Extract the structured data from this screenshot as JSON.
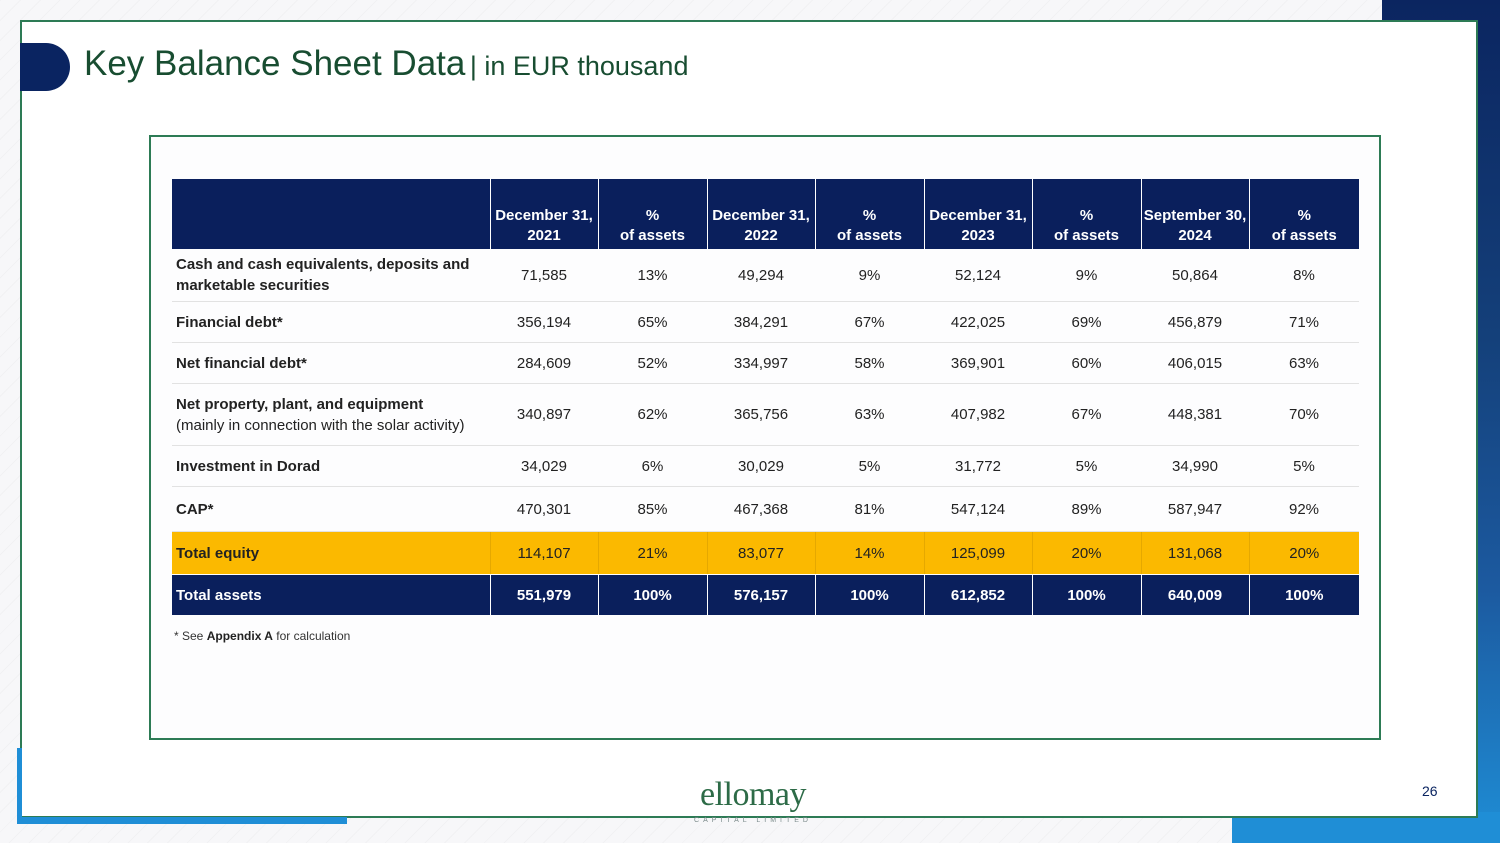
{
  "header": {
    "title": "Key Balance Sheet Data",
    "subtitle": "| in EUR thousand"
  },
  "table": {
    "columns": [
      "",
      "December 31,\n2021",
      "%\nof assets",
      "December 31,\n2022",
      "%\nof assets",
      "December 31,\n2023",
      "%\nof assets",
      "September 30,\n2024",
      "%\nof assets"
    ],
    "rows": [
      {
        "label": "Cash and cash equivalents, deposits and marketable securities",
        "note": "",
        "cells": [
          "71,585",
          "13%",
          "49,294",
          "9%",
          "52,124",
          "9%",
          "50,864",
          "8%"
        ]
      },
      {
        "label": "Financial debt*",
        "note": "",
        "cells": [
          "356,194",
          "65%",
          "384,291",
          "67%",
          "422,025",
          "69%",
          "456,879",
          "71%"
        ]
      },
      {
        "label": "Net financial debt*",
        "note": "",
        "cells": [
          "284,609",
          "52%",
          "334,997",
          "58%",
          "369,901",
          "60%",
          "406,015",
          "63%"
        ]
      },
      {
        "label": "Net property, plant, and equipment",
        "note": "(mainly in connection with the solar activity)",
        "cells": [
          "340,897",
          "62%",
          "365,756",
          "63%",
          "407,982",
          "67%",
          "448,381",
          "70%"
        ]
      },
      {
        "label": "Investment in Dorad",
        "note": "",
        "cells": [
          "34,029",
          "6%",
          "30,029",
          "5%",
          "31,772",
          "5%",
          "34,990",
          "5%"
        ]
      },
      {
        "label": "CAP*",
        "note": "",
        "cells": [
          "470,301",
          "85%",
          "467,368",
          "81%",
          "547,124",
          "89%",
          "587,947",
          "92%"
        ]
      },
      {
        "label": "Total equity",
        "note": "",
        "cells": [
          "114,107",
          "21%",
          "83,077",
          "14%",
          "125,099",
          "20%",
          "131,068",
          "20%"
        ]
      },
      {
        "label": "Total assets",
        "note": "",
        "cells": [
          "551,979",
          "100%",
          "576,157",
          "100%",
          "612,852",
          "100%",
          "640,009",
          "100%"
        ]
      }
    ]
  },
  "footnote": {
    "prefix": "* See",
    "link": "Appendix A",
    "suffix": "for calculation"
  },
  "footer": {
    "logo_word": "ellomay",
    "logo_tag": "CAPITAL LIMITED",
    "page_number": "26"
  },
  "colors": {
    "navy": "#0a1f5c",
    "title_green": "#184d31",
    "frame_green": "#2d7b55",
    "equity_yellow": "#fbb900",
    "accent_blue": "#1f8ed6"
  }
}
